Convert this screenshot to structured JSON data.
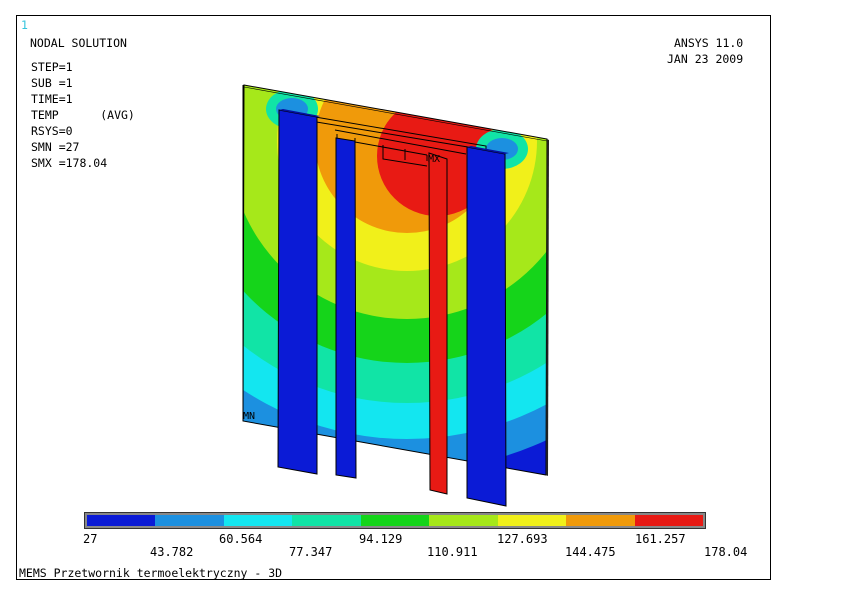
{
  "window": {
    "number": "1"
  },
  "info": {
    "title": "NODAL SOLUTION",
    "lines": [
      "STEP=1",
      "SUB =1",
      "TIME=1",
      "TEMP      (AVG)",
      "RSYS=0",
      "SMN =27",
      "SMX =178.04"
    ]
  },
  "product": {
    "name": "ANSYS 11.0",
    "date": "JAN 23 2009"
  },
  "markers": {
    "min": "MN",
    "max": "MX"
  },
  "legend": {
    "colors": [
      "#0b1bd6",
      "#1c90e0",
      "#13e6f0",
      "#11e4a6",
      "#15d41a",
      "#a6e81a",
      "#f1f01a",
      "#f09a0a",
      "#e81a14"
    ],
    "labels_top": [
      "27",
      "60.564",
      "94.129",
      "127.693",
      "161.257"
    ],
    "labels_bottom": [
      "43.782",
      "77.347",
      "110.911",
      "144.475",
      "178.04"
    ]
  },
  "caption": "MEMS Przetwornik termoelektryczny - 3D"
}
